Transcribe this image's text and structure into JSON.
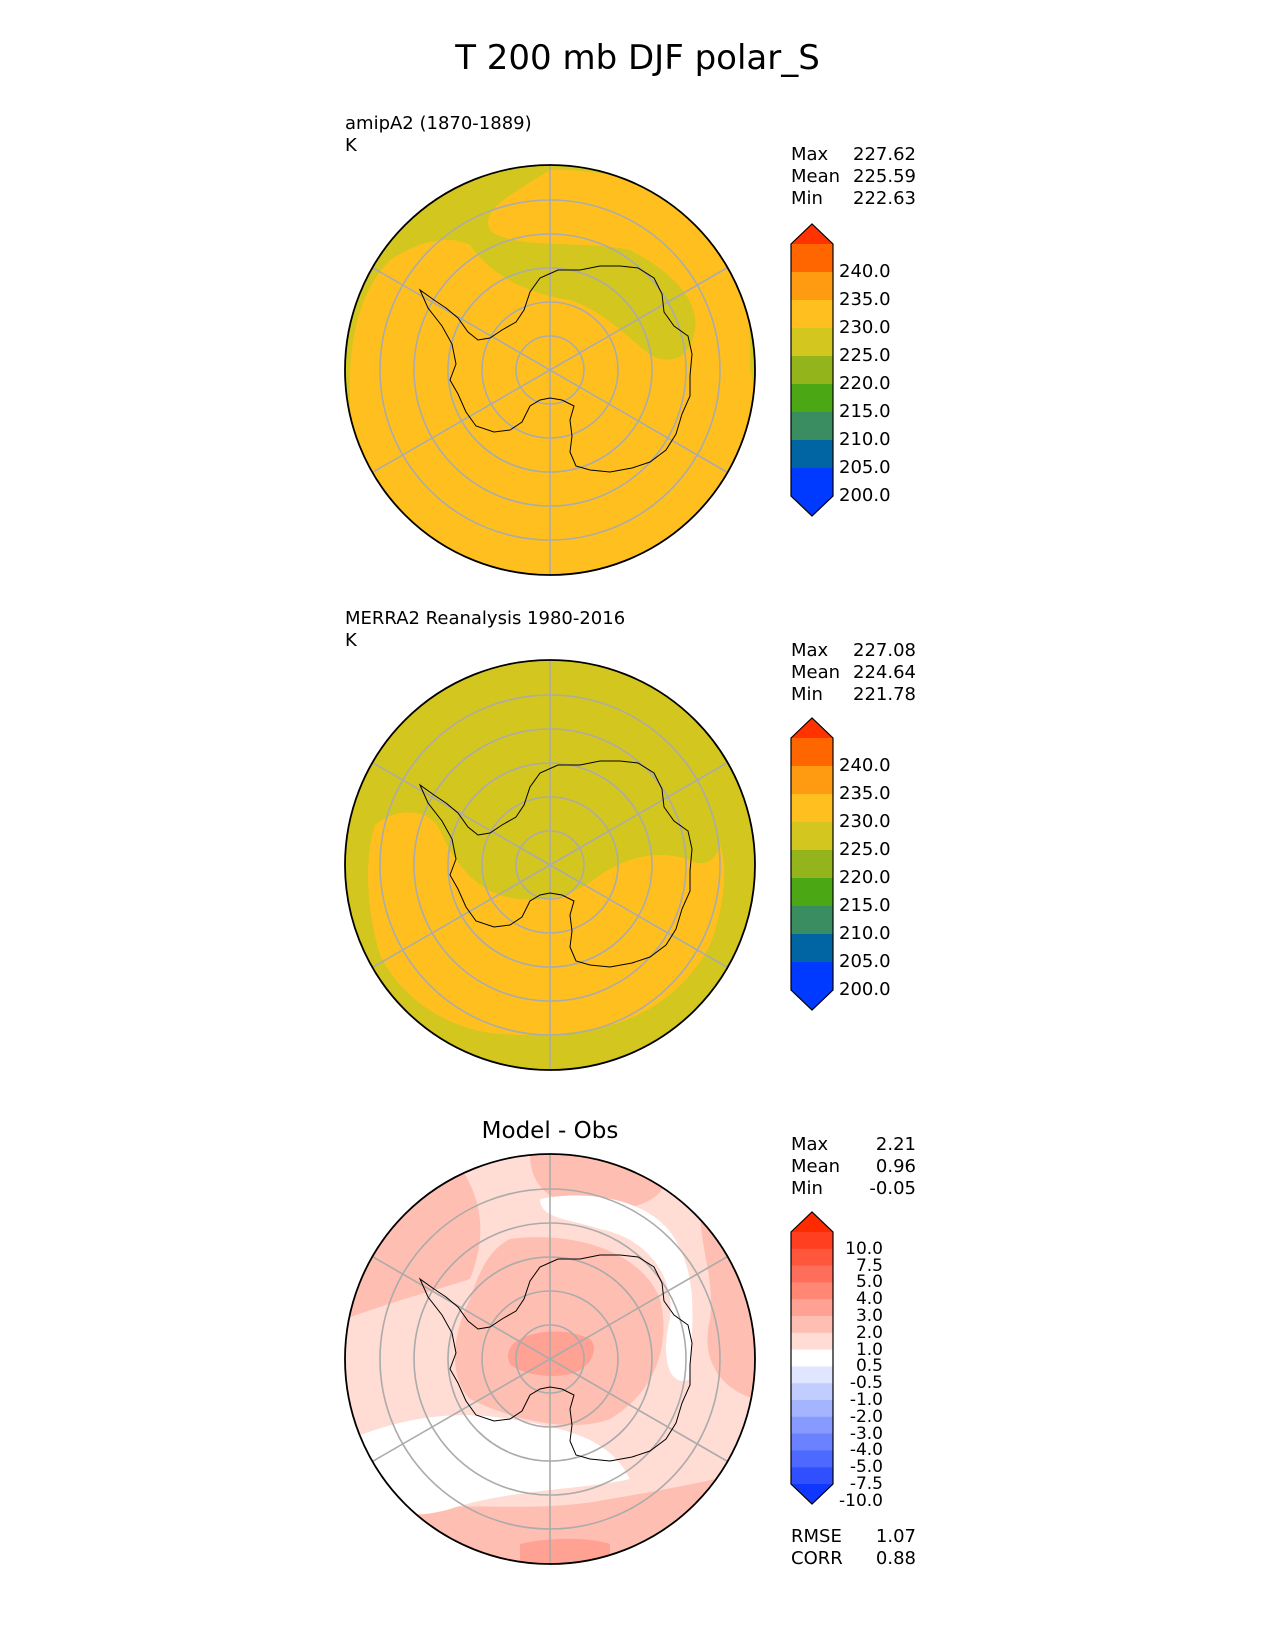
{
  "title": "T 200 mb DJF polar_S",
  "panels": [
    {
      "subtitle": "amipA2 (1870-1889)",
      "units": "K",
      "stats": [
        {
          "label": "Max",
          "value": "227.62"
        },
        {
          "label": "Mean",
          "value": "225.59"
        },
        {
          "label": "Min",
          "value": "222.63"
        }
      ],
      "colorbar": {
        "labels": [
          "240.0",
          "235.0",
          "230.0",
          "225.0",
          "220.0",
          "215.0",
          "210.0",
          "205.0",
          "200.0"
        ],
        "colors": [
          "#FF3300",
          "#FF6600",
          "#FF9B11",
          "#FFC01F",
          "#D3C61E",
          "#93B51B",
          "#4BA814",
          "#3A8C61",
          "#0065A2",
          "#0039FF",
          "#0039FF"
        ]
      }
    },
    {
      "subtitle": "MERRA2 Reanalysis 1980-2016",
      "units": "K",
      "stats": [
        {
          "label": "Max",
          "value": "227.08"
        },
        {
          "label": "Mean",
          "value": "224.64"
        },
        {
          "label": "Min",
          "value": "221.78"
        }
      ],
      "colorbar": {
        "labels": [
          "240.0",
          "235.0",
          "230.0",
          "225.0",
          "220.0",
          "215.0",
          "210.0",
          "205.0",
          "200.0"
        ],
        "colors": [
          "#FF3300",
          "#FF6600",
          "#FF9B11",
          "#FFC01F",
          "#D3C61E",
          "#93B51B",
          "#4BA814",
          "#3A8C61",
          "#0065A2",
          "#0039FF",
          "#0039FF"
        ]
      }
    },
    {
      "subtitle": "Model - Obs",
      "stats": [
        {
          "label": "Max",
          "value": "2.21"
        },
        {
          "label": "Mean",
          "value": "0.96"
        },
        {
          "label": "Min",
          "value": "-0.05"
        }
      ],
      "colorbar": {
        "labels": [
          "10.0",
          "7.5",
          "5.0",
          "4.0",
          "3.0",
          "2.0",
          "1.0",
          "0.5",
          "-0.5",
          "-1.0",
          "-2.0",
          "-3.0",
          "-4.0",
          "-5.0",
          "-7.5",
          "-10.0"
        ],
        "colors": [
          "#FF2B00",
          "#FF3F1F",
          "#FF563C",
          "#FF6E5B",
          "#FF8774",
          "#FFA193",
          "#FFBEB2",
          "#FFDCD4",
          "#FFFFFF",
          "#E0E6FF",
          "#C2CDFF",
          "#A4B4FF",
          "#869AFF",
          "#6A82FF",
          "#4E69FF",
          "#3050FF",
          "#1037FF"
        ]
      },
      "metrics": [
        {
          "label": "RMSE",
          "value": "1.07"
        },
        {
          "label": "CORR",
          "value": "0.88"
        }
      ]
    }
  ]
}
